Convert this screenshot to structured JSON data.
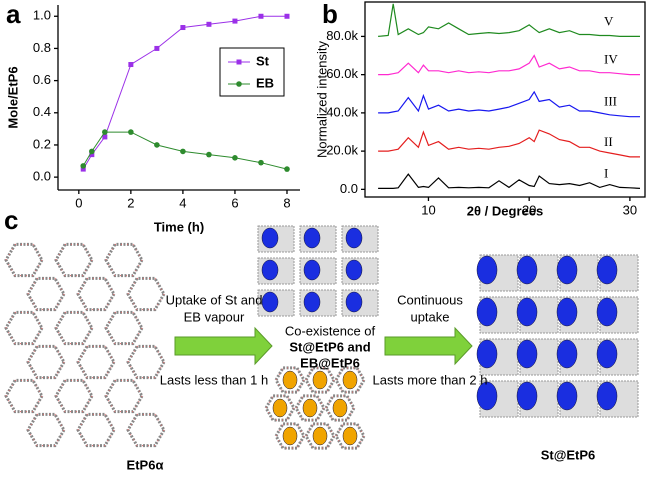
{
  "chart_data": [
    {
      "type": "line",
      "panel": "a",
      "xlabel": "Time (h)",
      "ylabel": "Mole/EtP6",
      "x": [
        0.17,
        0.5,
        1,
        2,
        3,
        4,
        5,
        6,
        7,
        8
      ],
      "series": [
        {
          "name": "St",
          "color": "#9b30e8",
          "marker": "square",
          "values": [
            0.05,
            0.14,
            0.25,
            0.7,
            0.8,
            0.93,
            0.95,
            0.97,
            1.0,
            1.0
          ]
        },
        {
          "name": "EB",
          "color": "#2e8b2e",
          "marker": "circle",
          "values": [
            0.07,
            0.16,
            0.28,
            0.28,
            0.2,
            0.16,
            0.14,
            0.12,
            0.09,
            0.05
          ]
        }
      ],
      "xlim": [
        -0.8,
        8.5
      ],
      "xticks": [
        0,
        2,
        4,
        6,
        8
      ],
      "ylim": [
        -0.08,
        1.07
      ],
      "yticks": [
        {
          "value": 0,
          "label": "0.0"
        },
        0.2,
        0.4,
        0.6,
        0.8,
        {
          "value": 1,
          "label": "1.0"
        }
      ],
      "legend": "upper-right-inner"
    },
    {
      "type": "line",
      "panel": "b",
      "xlabel": "2θ / Degrees",
      "ylabel": "Normalized intensity",
      "x": [
        5,
        6,
        6.5,
        7,
        8,
        9,
        9.5,
        10,
        11,
        12,
        13,
        14,
        15,
        16,
        17,
        18,
        19,
        20,
        20.5,
        21,
        22,
        23,
        24,
        25,
        26,
        27,
        28,
        29,
        30,
        31
      ],
      "series": [
        {
          "name": "V",
          "color": "#1f8a1f",
          "values": [
            80000,
            80500,
            97000,
            81000,
            84000,
            81000,
            82000,
            85000,
            84000,
            87000,
            84000,
            81000,
            81500,
            82000,
            81500,
            82000,
            83000,
            86000,
            84000,
            82000,
            84000,
            82000,
            83000,
            81000,
            81000,
            80500,
            80500,
            80000,
            80000,
            80000
          ]
        },
        {
          "name": "IV",
          "color": "#ff2ad0",
          "values": [
            60000,
            60000,
            60500,
            61000,
            66000,
            61000,
            65000,
            62000,
            62000,
            61000,
            62000,
            61000,
            61500,
            61000,
            62000,
            62000,
            63000,
            66000,
            70000,
            64000,
            66000,
            63000,
            64000,
            62000,
            62000,
            61000,
            61000,
            60500,
            60000,
            60000
          ]
        },
        {
          "name": "III",
          "color": "#1818f0",
          "values": [
            40000,
            40000,
            40500,
            41000,
            48000,
            41000,
            49000,
            42000,
            44000,
            41000,
            42000,
            41000,
            41500,
            41000,
            42000,
            43000,
            45000,
            47000,
            51000,
            46000,
            47000,
            43000,
            44000,
            41000,
            41000,
            40000,
            39000,
            38500,
            38000,
            38000
          ]
        },
        {
          "name": "II",
          "color": "#e41e1e",
          "values": [
            20000,
            20000,
            20500,
            21000,
            27000,
            22000,
            30000,
            23000,
            25000,
            21000,
            22000,
            21000,
            21500,
            21000,
            22000,
            22500,
            24000,
            27000,
            25000,
            31000,
            29000,
            26000,
            25000,
            22000,
            22000,
            20000,
            19000,
            18000,
            17000,
            17000
          ]
        },
        {
          "name": "I",
          "color": "#000000",
          "values": [
            500,
            500,
            500,
            800,
            8000,
            1000,
            1500,
            1000,
            6000,
            800,
            1000,
            800,
            1000,
            800,
            4500,
            1000,
            5000,
            2000,
            1500,
            7000,
            3000,
            2500,
            3000,
            2000,
            3500,
            1000,
            2500,
            1000,
            800,
            500
          ]
        }
      ],
      "xlim": [
        3.7,
        31.5
      ],
      "xticks": [
        10,
        20,
        30
      ],
      "ylim": [
        -4000,
        98000
      ],
      "yticks": [
        {
          "value": 0,
          "label": "0.0"
        },
        {
          "value": 20000,
          "label": "20.0k"
        },
        {
          "value": 40000,
          "label": "40.0k"
        },
        {
          "value": 60000,
          "label": "60.0k"
        },
        {
          "value": 80000,
          "label": "80.0k"
        }
      ],
      "legend": "series-label-right"
    }
  ],
  "diagram": {
    "panel": "c",
    "step1": [
      "Uptake of St and",
      "EB vapour"
    ],
    "step1_time": "Lasts less than 1 h",
    "middle": [
      "Co-existence of",
      "St@EtP6 and",
      "EB@EtP6"
    ],
    "step2": [
      "Continuous",
      "uptake"
    ],
    "step2_time": "Lasts more than 2 h",
    "start": "EtP6α",
    "end": "St@EtP6"
  }
}
